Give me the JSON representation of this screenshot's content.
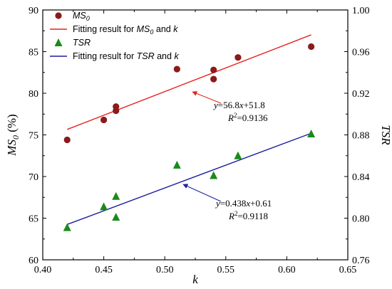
{
  "chart_data": {
    "type": "scatter",
    "x": {
      "label": "k",
      "lim": [
        0.4,
        0.65
      ],
      "ticks": [
        "0.40",
        "0.45",
        "0.50",
        "0.55",
        "0.60",
        "0.65"
      ]
    },
    "y_left": {
      "label_main": "MS",
      "label_sub": "0",
      "label_suffix": " (%)",
      "lim": [
        60,
        90
      ],
      "ticks": [
        "60",
        "65",
        "70",
        "75",
        "80",
        "85",
        "90"
      ]
    },
    "y_right": {
      "label": "TSR",
      "lim": [
        0.76,
        1.0
      ],
      "ticks": [
        "0.76",
        "0.80",
        "0.84",
        "0.88",
        "0.92",
        "0.96",
        "1.00"
      ]
    },
    "series": [
      {
        "name_main": "MS",
        "name_sub": "0",
        "marker": "circle",
        "color": "#8B1A1A",
        "axis": "left",
        "points": [
          [
            0.42,
            74.4
          ],
          [
            0.45,
            76.8
          ],
          [
            0.46,
            77.9
          ],
          [
            0.46,
            78.4
          ],
          [
            0.51,
            82.9
          ],
          [
            0.54,
            81.7
          ],
          [
            0.54,
            82.8
          ],
          [
            0.56,
            84.3
          ],
          [
            0.62,
            85.6
          ]
        ]
      },
      {
        "name_main": "TSR",
        "marker": "triangle",
        "color": "#1A8A1A",
        "axis": "right",
        "points": [
          [
            0.42,
            0.791
          ],
          [
            0.45,
            0.811
          ],
          [
            0.46,
            0.801
          ],
          [
            0.46,
            0.821
          ],
          [
            0.51,
            0.851
          ],
          [
            0.54,
            0.841
          ],
          [
            0.56,
            0.86
          ],
          [
            0.62,
            0.881
          ]
        ]
      }
    ],
    "fits": [
      {
        "legend_prefix": "Fitting result for ",
        "legend_var": "MS",
        "legend_sub": "0",
        "legend_suffix": " and ",
        "legend_k": "k",
        "color": "#E8231E",
        "axis": "left",
        "slope": 56.8,
        "intercept": 51.8,
        "x_range": [
          0.42,
          0.62
        ],
        "eq_y": "y",
        "eq_x": "x",
        "eq_mid": "=56.8",
        "eq_end": "+51.8",
        "r2_r": "R",
        "r2_sup": "2",
        "r2_val": "=0.9136"
      },
      {
        "legend_prefix": "Fitting result for ",
        "legend_var": "TSR",
        "legend_sub": "",
        "legend_suffix": " and ",
        "legend_k": "k",
        "color": "#1B1F9E",
        "axis": "right",
        "slope": 0.438,
        "intercept": 0.61,
        "x_range": [
          0.42,
          0.62
        ],
        "eq_y": "y",
        "eq_x": "x",
        "eq_mid": "=0.438",
        "eq_end": "+0.61",
        "r2_r": "R",
        "r2_sup": "2",
        "r2_val": "=0.9118"
      }
    ],
    "legend_position": "top-left",
    "grid": false
  }
}
